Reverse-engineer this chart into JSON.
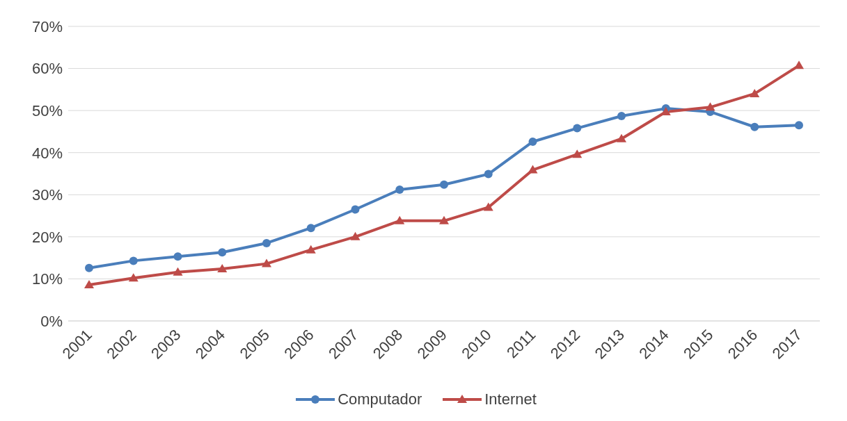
{
  "chart_data": {
    "type": "line",
    "categories": [
      "2001",
      "2002",
      "2003",
      "2004",
      "2005",
      "2006",
      "2007",
      "2008",
      "2009",
      "2010",
      "2011",
      "2012",
      "2013",
      "2014",
      "2015",
      "2016",
      "2017"
    ],
    "series": [
      {
        "name": "Computador",
        "color": "#4a7ebb",
        "marker": "circle",
        "values": [
          12.6,
          14.3,
          15.3,
          16.3,
          18.5,
          22.1,
          26.5,
          31.2,
          32.4,
          34.9,
          42.6,
          45.8,
          48.7,
          50.5,
          49.7,
          46.1,
          46.5
        ]
      },
      {
        "name": "Internet",
        "color": "#be4b48",
        "marker": "triangle",
        "values": [
          8.6,
          10.2,
          11.6,
          12.4,
          13.6,
          16.9,
          20.0,
          23.8,
          23.8,
          27.0,
          35.9,
          39.6,
          43.3,
          49.7,
          50.8,
          54.0,
          60.7
        ]
      }
    ],
    "ylim": [
      0,
      70
    ],
    "yticks": [
      {
        "value": 0,
        "label": "0%"
      },
      {
        "value": 10,
        "label": "10%"
      },
      {
        "value": 20,
        "label": "20%"
      },
      {
        "value": 30,
        "label": "30%"
      },
      {
        "value": 40,
        "label": "40%"
      },
      {
        "value": 50,
        "label": "50%"
      },
      {
        "value": 60,
        "label": "60%"
      },
      {
        "value": 70,
        "label": "70%"
      }
    ],
    "grid": "y",
    "legend": "bottom",
    "line_style": "solid"
  }
}
